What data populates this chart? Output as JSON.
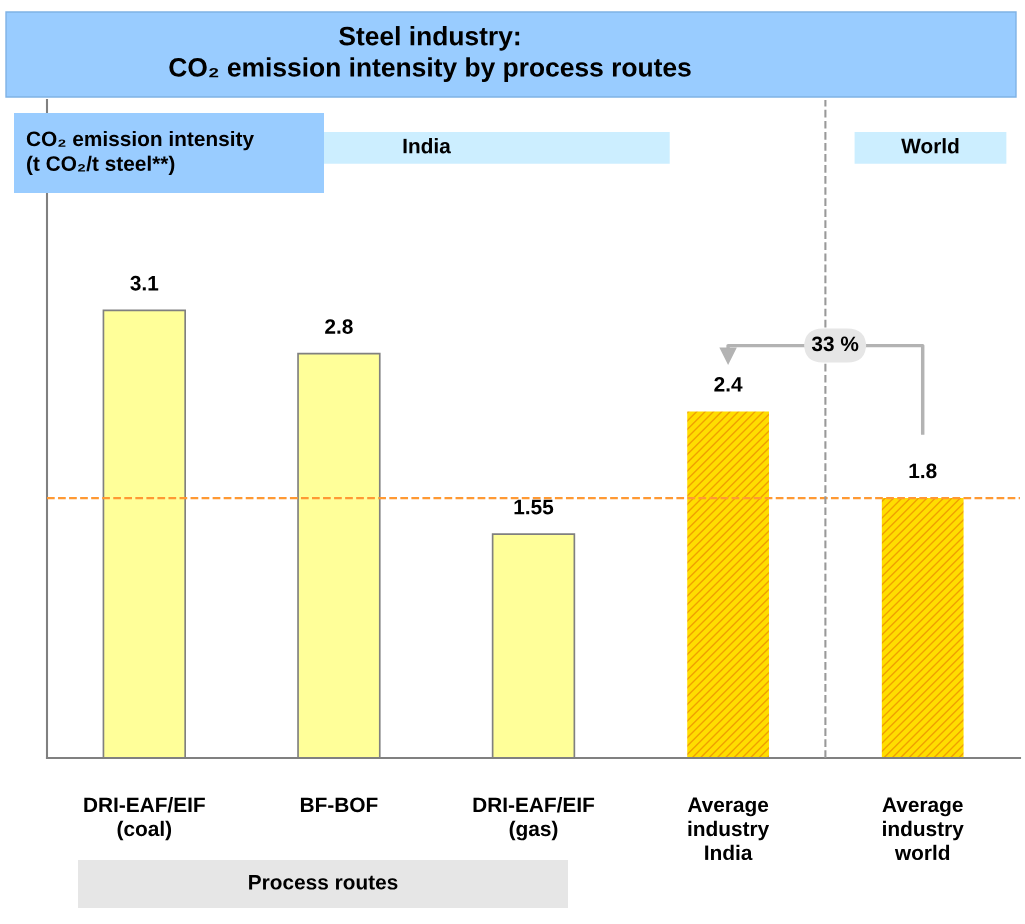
{
  "chart_data": {
    "type": "bar",
    "title": "Steel industry:\nCO₂ emission intensity by process routes",
    "categories": [
      "DRI-EAF/EIF\n(coal)",
      "BF-BOF",
      "DRI-EAF/EIF\n(gas)",
      "Average\nindustry\nIndia",
      "Average\nindustry\nworld"
    ],
    "values": [
      3.1,
      2.8,
      1.55,
      2.4,
      1.8
    ],
    "colors": [
      "#ffff99",
      "#ffff99",
      "#ffff99",
      "#ffdd00",
      "#ffdd00"
    ],
    "data_labels": true,
    "ref_lines": [
      {
        "axis": "y",
        "value": 1.8,
        "color": "#ff9933",
        "line_style": "dashed"
      }
    ],
    "annotations": [
      "India",
      "World",
      "Process routes",
      "33 %",
      "CO₂ emission intensity\n(t CO₂/t steel**)"
    ]
  }
}
